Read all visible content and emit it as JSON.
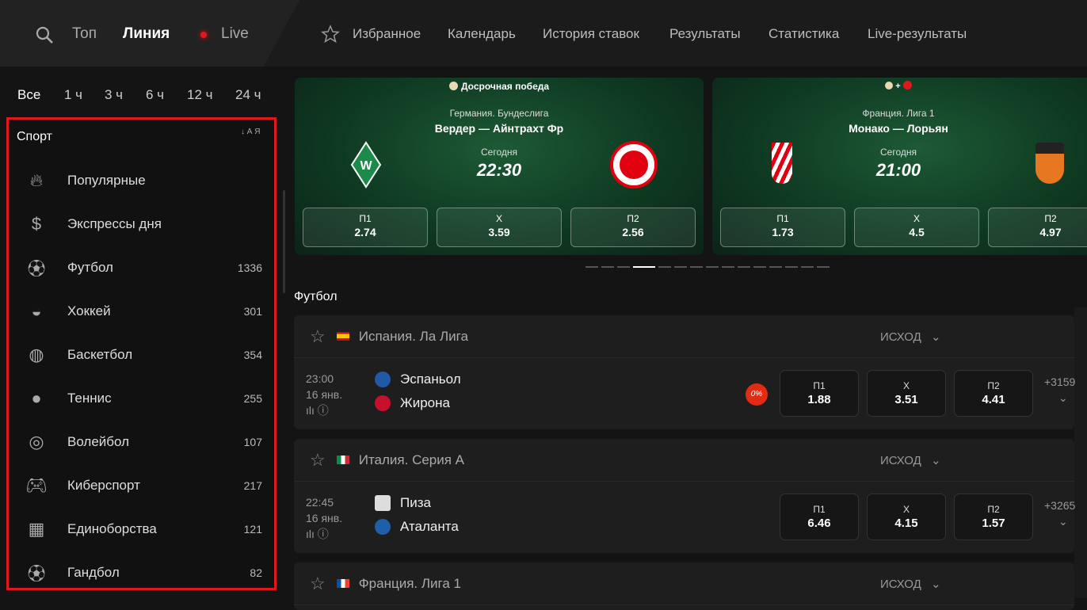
{
  "topbar": {
    "top": "Топ",
    "line": "Линия",
    "live": "Live",
    "nav": [
      "Избранное",
      "Календарь",
      "История ставок",
      "Результаты",
      "Статистика",
      "Live-результаты"
    ]
  },
  "sidebar": {
    "time_filters": [
      "Все",
      "1 ч",
      "3 ч",
      "6 ч",
      "12 ч",
      "24 ч"
    ],
    "title": "Спорт",
    "sort": "А Я",
    "items": [
      {
        "label": "Популярные",
        "icon": "fire-icon",
        "count": ""
      },
      {
        "label": "Экспрессы дня",
        "icon": "money-bag-icon",
        "count": ""
      },
      {
        "label": "Футбол",
        "icon": "soccer-ball-icon",
        "count": "1336"
      },
      {
        "label": "Хоккей",
        "icon": "hockey-puck-icon",
        "count": "301"
      },
      {
        "label": "Баскетбол",
        "icon": "basketball-icon",
        "count": "354"
      },
      {
        "label": "Теннис",
        "icon": "tennis-ball-icon",
        "count": "255"
      },
      {
        "label": "Волейбол",
        "icon": "volleyball-icon",
        "count": "107"
      },
      {
        "label": "Киберспорт",
        "icon": "gamepad-icon",
        "count": "217"
      },
      {
        "label": "Единоборства",
        "icon": "fight-icon",
        "count": "121"
      },
      {
        "label": "Гандбол",
        "icon": "handball-icon",
        "count": "82"
      }
    ]
  },
  "promos": [
    {
      "badge": "Досрочная победа",
      "league": "Германия. Бундеслига",
      "teams": "Вердер — Айнтрахт Фр",
      "day": "Сегодня",
      "time": "22:30",
      "odds": [
        {
          "l": "П1",
          "v": "2.74"
        },
        {
          "l": "Х",
          "v": "3.59"
        },
        {
          "l": "П2",
          "v": "2.56"
        }
      ]
    },
    {
      "badge": "+",
      "league": "Франция. Лига 1",
      "teams": "Монако — Лорьян",
      "day": "Сегодня",
      "time": "21:00",
      "odds": [
        {
          "l": "П1",
          "v": "1.73"
        },
        {
          "l": "Х",
          "v": "4.5"
        },
        {
          "l": "П2",
          "v": "4.97"
        }
      ]
    }
  ],
  "section_title": "Футбол",
  "leagues": [
    {
      "name": "Испания. Ла Лига",
      "market": "ИСХОД",
      "match": {
        "time": "23:00",
        "date": "16 янв.",
        "home": "Эспаньол",
        "away": "Жирона",
        "promo": "0%",
        "odds": [
          {
            "l": "П1",
            "v": "1.88"
          },
          {
            "l": "Х",
            "v": "3.51"
          },
          {
            "l": "П2",
            "v": "4.41"
          }
        ],
        "more": "+3159"
      }
    },
    {
      "name": "Италия. Серия А",
      "market": "ИСХОД",
      "match": {
        "time": "22:45",
        "date": "16 янв.",
        "home": "Пиза",
        "away": "Аталанта",
        "odds": [
          {
            "l": "П1",
            "v": "6.46"
          },
          {
            "l": "Х",
            "v": "4.15"
          },
          {
            "l": "П2",
            "v": "1.57"
          }
        ],
        "more": "+3265"
      }
    },
    {
      "name": "Франция. Лига 1",
      "market": "ИСХОД"
    }
  ]
}
